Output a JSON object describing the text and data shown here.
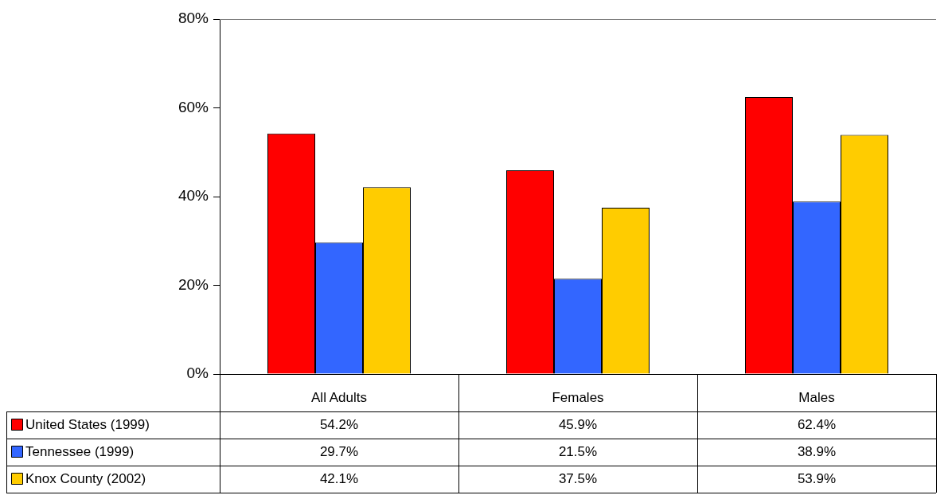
{
  "chart_data": {
    "type": "bar",
    "categories": [
      "All Adults",
      "Females",
      "Males"
    ],
    "series": [
      {
        "name": "United States (1999)",
        "color": "#ff0000",
        "values": [
          54.2,
          45.9,
          62.4
        ],
        "value_labels": [
          "54.2%",
          "45.9%",
          "62.4%"
        ]
      },
      {
        "name": "Tennessee (1999)",
        "color": "#3366ff",
        "values": [
          29.7,
          21.5,
          38.9
        ],
        "value_labels": [
          "29.7%",
          "21.5%",
          "38.9%"
        ]
      },
      {
        "name": "Knox County (2002)",
        "color": "#ffcc00",
        "values": [
          42.1,
          37.5,
          53.9
        ],
        "value_labels": [
          "42.1%",
          "37.5%",
          "53.9%"
        ]
      }
    ],
    "ylim": [
      0,
      80
    ],
    "yticks": [
      {
        "value": 0,
        "label": "0%"
      },
      {
        "value": 20,
        "label": "20%"
      },
      {
        "value": 40,
        "label": "40%"
      },
      {
        "value": 60,
        "label": "60%"
      },
      {
        "value": 80,
        "label": "80%"
      }
    ],
    "grid": false,
    "legend": "bottom left"
  }
}
